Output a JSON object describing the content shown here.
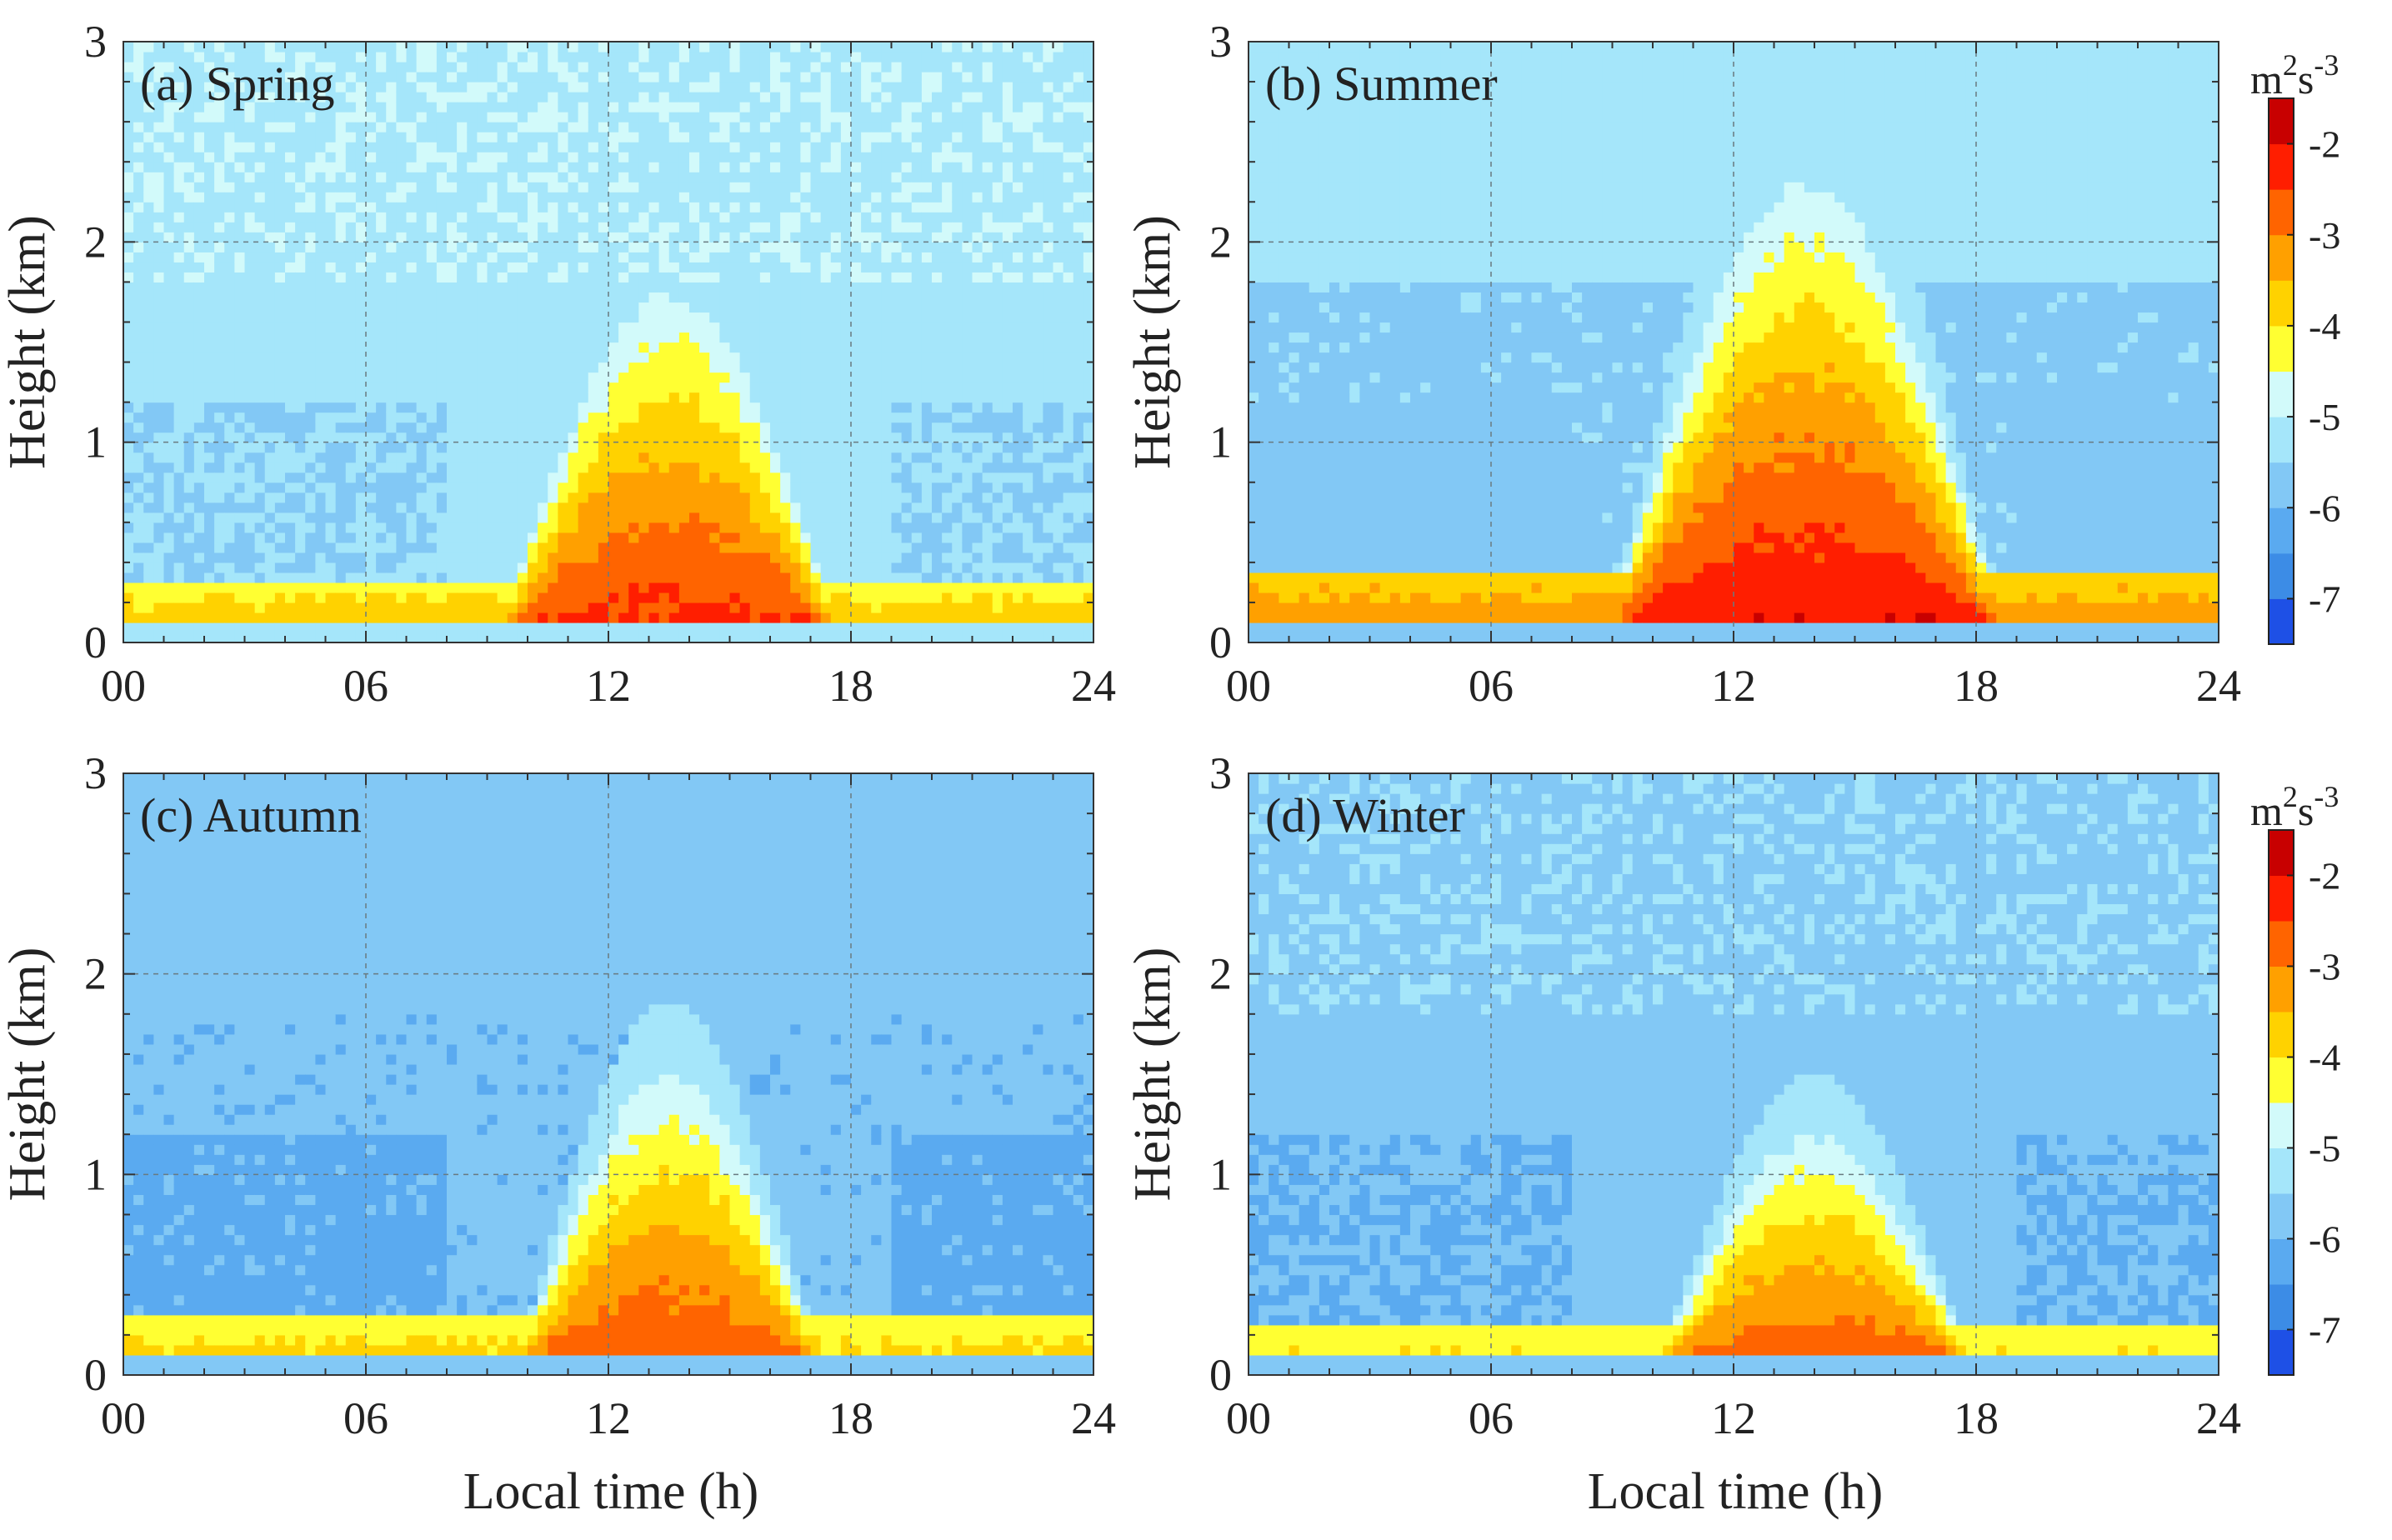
{
  "figure": {
    "xlabel": "Local time (h)",
    "ylabel": "Height (km)",
    "colorbar_unit_base": "m",
    "colorbar_unit_sup1": "2",
    "colorbar_unit_mid": "s",
    "colorbar_unit_sup2": "-3"
  },
  "chart_data": [
    {
      "type": "heatmap",
      "panel_label": "(a) Spring",
      "xlabel": "Local time (h)",
      "ylabel": "Height (km)",
      "xlim": [
        0,
        24
      ],
      "ylim": [
        0,
        3
      ],
      "x_ticks": [
        "00",
        "06",
        "12",
        "18",
        "24"
      ],
      "y_ticks": [
        "0",
        "1",
        "2",
        "3"
      ],
      "grid": true,
      "background_value": -5.3,
      "surface_value": -4.2,
      "surface_layer_top_km": 0.3,
      "plume": {
        "center_time_h": 13.5,
        "half_width_h": 4.5,
        "peak_height_km": 1.75,
        "core_value": -2.1,
        "onset_h": 6.5,
        "decay_h": 18.5
      }
    },
    {
      "type": "heatmap",
      "panel_label": "(b) Summer",
      "xlabel": "Local time (h)",
      "ylabel": "Height (km)",
      "xlim": [
        0,
        24
      ],
      "ylim": [
        0,
        3
      ],
      "x_ticks": [
        "00",
        "06",
        "12",
        "18",
        "24"
      ],
      "y_ticks": [
        "0",
        "1",
        "2",
        "3"
      ],
      "grid": true,
      "background_value": -5.6,
      "surface_value": -3.8,
      "surface_layer_top_km": 0.35,
      "plume": {
        "center_time_h": 13.8,
        "half_width_h": 5.2,
        "peak_height_km": 2.3,
        "core_value": -1.8,
        "onset_h": 5.5,
        "decay_h": 20.0
      }
    },
    {
      "type": "heatmap",
      "panel_label": "(c) Autumn",
      "xlabel": "Local time (h)",
      "ylabel": "Height (km)",
      "xlim": [
        0,
        24
      ],
      "ylim": [
        0,
        3
      ],
      "x_ticks": [
        "00",
        "06",
        "12",
        "18",
        "24"
      ],
      "y_ticks": [
        "0",
        "1",
        "2",
        "3"
      ],
      "grid": true,
      "background_value": -5.9,
      "surface_value": -4.3,
      "surface_layer_top_km": 0.28,
      "plume": {
        "center_time_h": 13.5,
        "half_width_h": 4.0,
        "peak_height_km": 1.5,
        "core_value": -2.3,
        "onset_h": 7.5,
        "decay_h": 18.0
      }
    },
    {
      "type": "heatmap",
      "panel_label": "(d) Winter",
      "xlabel": "Local time (h)",
      "ylabel": "Height (km)",
      "xlim": [
        0,
        24
      ],
      "ylim": [
        0,
        3
      ],
      "x_ticks": [
        "00",
        "06",
        "12",
        "18",
        "24"
      ],
      "y_ticks": [
        "0",
        "1",
        "2",
        "3"
      ],
      "grid": true,
      "background_value": -5.8,
      "surface_value": -4.4,
      "surface_layer_top_km": 0.25,
      "plume": {
        "center_time_h": 14.0,
        "half_width_h": 4.2,
        "peak_height_km": 1.2,
        "core_value": -2.4,
        "onset_h": 8.0,
        "decay_h": 19.0
      }
    }
  ],
  "colorbar": {
    "range": [
      -7.5,
      -1.5
    ],
    "ticks": [
      "-2",
      "-3",
      "-4",
      "-5",
      "-6",
      "-7"
    ],
    "levels": [
      -7.5,
      -7.0,
      -6.5,
      -6.0,
      -5.5,
      -5.0,
      -4.5,
      -4.0,
      -3.5,
      -3.0,
      -2.5,
      -2.0,
      -1.5
    ],
    "colors": [
      "#0a14c8",
      "#1e50e6",
      "#3c8ce6",
      "#5aaaf0",
      "#82c8f5",
      "#a5e6fa",
      "#d2fafa",
      "#ffff32",
      "#ffd200",
      "#ffa000",
      "#ff6400",
      "#ff1e00",
      "#c80000",
      "#8c0000"
    ]
  }
}
